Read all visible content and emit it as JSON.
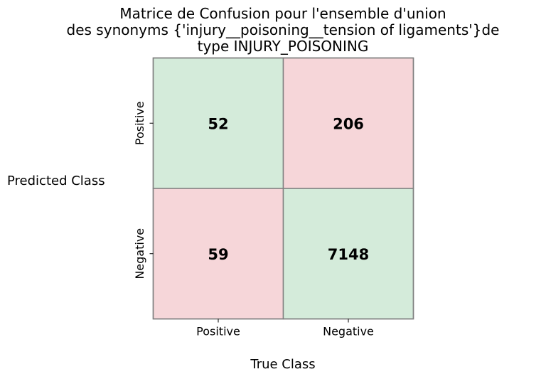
{
  "chart_data": {
    "type": "heatmap",
    "title_lines": [
      "Matrice de Confusion pour l'ensemble d'union",
      "des synonyms {'injury__poisoning__tension of ligaments'}de",
      "type  INJURY_POISONING"
    ],
    "xlabel": "True Class",
    "ylabel": "Predicted Class",
    "x_categories": [
      "Positive",
      "Negative"
    ],
    "y_categories": [
      "Positive",
      "Negative"
    ],
    "cells": [
      {
        "row": 0,
        "col": 0,
        "value": "52",
        "kind": "correct"
      },
      {
        "row": 0,
        "col": 1,
        "value": "206",
        "kind": "error"
      },
      {
        "row": 1,
        "col": 0,
        "value": "59",
        "kind": "error"
      },
      {
        "row": 1,
        "col": 1,
        "value": "7148",
        "kind": "correct"
      }
    ],
    "colors": {
      "correct": "#d4ebda",
      "error": "#f6d6d9",
      "border": "#808080"
    }
  }
}
